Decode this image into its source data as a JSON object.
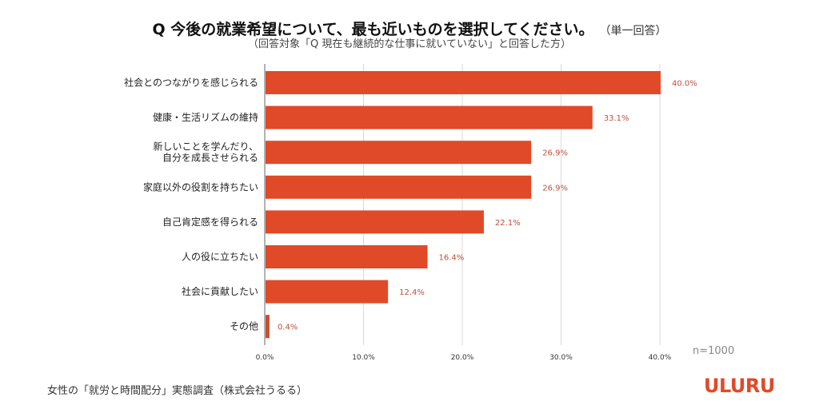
{
  "chart_data": {
    "type": "bar",
    "orientation": "horizontal",
    "title": "Q 今後の就業希望について、最も近いものを選択してください。",
    "title_note": "（単一回答）",
    "subtitle": "（回答対象「Q 現在も継続的な仕事に就いていない」と回答した方）",
    "categories": [
      [
        "社会とのつながりを感じられる"
      ],
      [
        "健康・生活リズムの維持"
      ],
      [
        "新しいことを学んだり、",
        "自分を成長させられる"
      ],
      [
        "家庭以外の役割を持ちたい"
      ],
      [
        "自己肯定感を得られる"
      ],
      [
        "人の役に立ちたい"
      ],
      [
        "社会に貢献したい"
      ],
      [
        "その他"
      ]
    ],
    "values": [
      40.0,
      33.1,
      26.9,
      26.9,
      22.1,
      16.4,
      12.4,
      0.4
    ],
    "value_labels": [
      "40.0%",
      "33.1%",
      "26.9%",
      "26.9%",
      "22.1%",
      "16.4%",
      "12.4%",
      "0.4%"
    ],
    "xlim": [
      0,
      40
    ],
    "x_ticks": [
      0,
      10,
      20,
      30,
      40
    ],
    "x_tick_labels": [
      "0.0%",
      "10.0%",
      "20.0%",
      "30.0%",
      "40.0%"
    ],
    "grid": true,
    "legend": "none",
    "xlabel": "",
    "ylabel": "",
    "sample_size": "n=1000",
    "bar_color": "#e04a28",
    "other_bar_color": "#c8502f"
  },
  "footer": {
    "source": "女性の「就労と時間配分」実態調査（株式会社うるる）",
    "logo": "ULURU"
  }
}
